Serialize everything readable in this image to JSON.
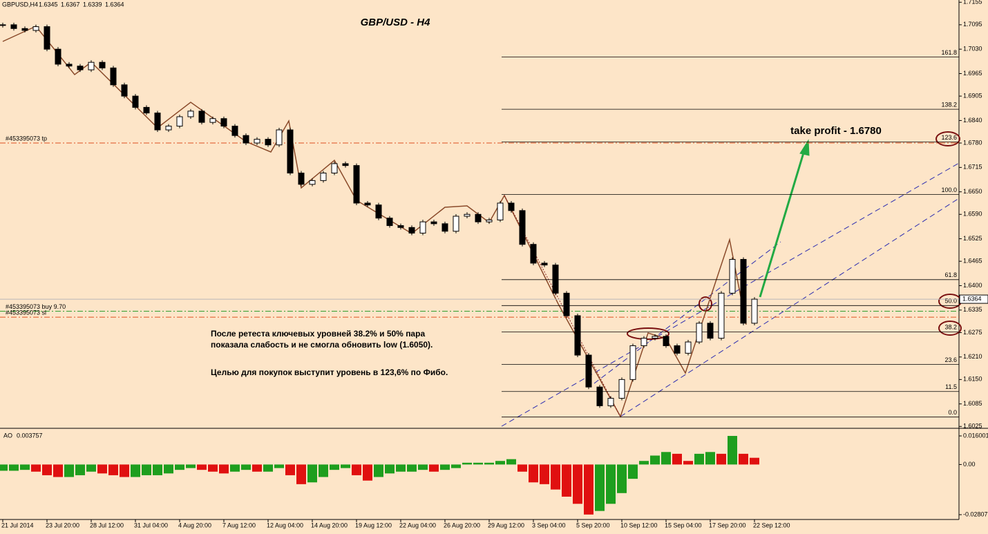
{
  "header": {
    "symbol": "GBPUSD,H4",
    "ohlc": [
      1.6345,
      1.6367,
      1.6339,
      1.6364
    ]
  },
  "chart_data": {
    "type": "candlestick",
    "title": "GBP/USD - H4",
    "categories": [
      "21 Jul 2014",
      null,
      null,
      null,
      "23 Jul 20:00",
      null,
      null,
      null,
      "28 Jul 12:00",
      null,
      null,
      null,
      "31 Jul 04:00",
      null,
      null,
      null,
      "4 Aug 20:00",
      null,
      null,
      null,
      "7 Aug 12:00",
      null,
      null,
      null,
      "12 Aug 04:00",
      null,
      null,
      null,
      "14 Aug 20:00",
      null,
      null,
      null,
      "19 Aug 12:00",
      null,
      null,
      null,
      "22 Aug 04:00",
      null,
      null,
      null,
      "26 Aug 20:00",
      null,
      null,
      null,
      "29 Aug 12:00",
      null,
      null,
      null,
      "3 Sep 04:00",
      null,
      null,
      null,
      "5 Sep 20:00",
      null,
      null,
      null,
      "10 Sep 12:00",
      null,
      null,
      null,
      "15 Sep 04:00",
      null,
      null,
      null,
      "17 Sep 20:00",
      null,
      null,
      null,
      "22 Sep 12:00"
    ],
    "values": [
      1.7095,
      1.7085,
      1.708,
      1.709,
      1.703,
      1.699,
      1.6985,
      1.6975,
      1.6995,
      1.698,
      1.6935,
      1.6905,
      1.6875,
      1.686,
      1.6815,
      1.6825,
      1.685,
      1.6865,
      1.6835,
      1.6845,
      1.6825,
      1.68,
      1.678,
      1.679,
      1.6775,
      1.6815,
      1.67,
      1.667,
      1.668,
      1.67,
      1.6725,
      1.672,
      1.662,
      1.6615,
      1.658,
      1.656,
      1.6555,
      1.654,
      1.657,
      1.6565,
      1.6545,
      1.6585,
      1.659,
      1.657,
      1.6575,
      1.662,
      1.66,
      1.651,
      1.646,
      1.6455,
      1.638,
      1.632,
      1.6215,
      1.613,
      1.608,
      1.61,
      1.615,
      1.624,
      1.626,
      1.6265,
      1.624,
      1.622,
      1.625,
      1.63,
      1.626,
      1.638,
      1.647,
      1.63,
      1.6364
    ],
    "ylim": [
      1.602,
      1.7161
    ],
    "yticks": [
      1.7155,
      1.7095,
      {
        "value": 1.703,
        "label": "1.7030"
      },
      1.6965,
      1.6905,
      {
        "value": 1.684,
        "label": "1.6840"
      },
      {
        "value": 1.678,
        "label": "1.6780"
      },
      1.6715,
      {
        "value": 1.665,
        "label": "1.6650"
      },
      {
        "value": 1.659,
        "label": "1.6590"
      },
      1.6525,
      1.6465,
      {
        "value": 1.64,
        "label": "1.6400"
      },
      1.6335,
      1.6275,
      {
        "value": 1.621,
        "label": "1.6210"
      },
      {
        "value": 1.615,
        "label": "1.6150"
      },
      1.6085,
      1.6025
    ],
    "current_price": {
      "value": 1.6364,
      "label": "1.6364"
    },
    "fibo_levels": [
      161.8,
      138.2,
      123.6,
      {
        "value": 100,
        "label": "100.0"
      },
      61.8,
      {
        "value": 50,
        "label": "50.0"
      },
      38.2,
      23.6,
      11.5,
      {
        "value": 0,
        "label": "0.0"
      }
    ],
    "fibo_prices": [
      1.7009,
      1.687,
      1.6783,
      1.6643,
      1.6416,
      1.6347,
      1.6277,
      1.619,
      1.6118,
      1.605
    ],
    "orders": [
      {
        "label": "#453395073 tp",
        "price": 1.678,
        "color": "#e05020"
      },
      {
        "label": "#453395073 buy 9.70",
        "price": 1.6332,
        "color": "#2e9e2e"
      },
      {
        "label": "#453395073 sl",
        "price": 1.6316,
        "color": "#e05020"
      }
    ],
    "annotation": "take profit - 1.6780",
    "note": [
      "После ретеста ключевых уровней 38.2% и 50% пара",
      "показала слабость и не смогла обновить low (1.6050).",
      "Целью для покупок выступит уровень в 123,6% по Фибо."
    ]
  },
  "indicator": {
    "type": "bar",
    "label": "AO",
    "last": 0.003757,
    "values": [
      -0.0035,
      -0.0035,
      -0.003,
      -0.004,
      -0.006,
      -0.007,
      -0.007,
      -0.006,
      -0.004,
      -0.005,
      -0.006,
      -0.007,
      -0.007,
      -0.006,
      -0.006,
      -0.005,
      -0.003,
      -0.002,
      -0.003,
      -0.004,
      -0.005,
      -0.004,
      -0.003,
      -0.004,
      -0.004,
      -0.002,
      -0.006,
      -0.011,
      -0.01,
      -0.007,
      -0.003,
      -0.002,
      -0.006,
      -0.009,
      -0.007,
      -0.005,
      -0.004,
      -0.004,
      -0.003,
      -0.004,
      -0.003,
      -0.002,
      0.001,
      0.001,
      0.001,
      0.002,
      0.003,
      -0.004,
      -0.01,
      -0.011,
      -0.014,
      -0.018,
      -0.022,
      -0.028,
      -0.026,
      -0.022,
      -0.016,
      -0.008,
      0.002,
      0.005,
      0.007,
      0.006,
      0.002,
      0.006,
      0.007,
      0.006,
      0.016,
      0.006,
      0.003757
    ],
    "ylim": [
      -0.03,
      0.0191
    ],
    "yticks": [
      0.016001,
      {
        "value": 0,
        "label": "0.00"
      },
      -0.028076
    ],
    "up_color": "#1e9e1e",
    "down_color": "#e01010"
  }
}
